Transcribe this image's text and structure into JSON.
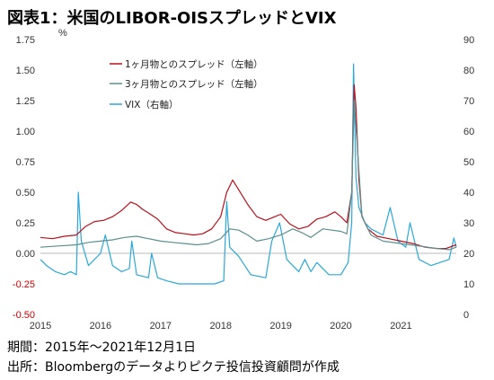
{
  "title": "図表1：米国のLIBOR-OISスプレッドとVIX",
  "footer": {
    "period": "期間：2015年～2021年12月1日",
    "source": "出所：Bloombergのデータよりピクテ投信投資顧問が作成"
  },
  "chart_data": {
    "type": "line",
    "ylabel_left": "%",
    "ylim_left": [
      -0.5,
      1.75
    ],
    "ylim_right": [
      0,
      90
    ],
    "left_ticks": [
      "1.75",
      "1.50",
      "1.25",
      "1.00",
      "0.75",
      "0.50",
      "0.25",
      "0.00",
      "-0.25",
      "-0.50"
    ],
    "right_ticks": [
      "90",
      "80",
      "70",
      "60",
      "50",
      "40",
      "30",
      "20",
      "10",
      "0"
    ],
    "x_ticks": [
      "2015",
      "2016",
      "2017",
      "2018",
      "2019",
      "2020",
      "2021"
    ],
    "xlim": [
      2015.0,
      2021.92
    ],
    "legend_position": "top-left",
    "colors": {
      "spread_1m": "#b5121b",
      "spread_3m": "#5b8f8f",
      "vix": "#2aa8d8",
      "negative_tick": "#cc0000"
    },
    "series": [
      {
        "name": "1ヶ月物とのスプレッド（左軸）",
        "axis": "left",
        "x": [
          2015.0,
          2015.2,
          2015.4,
          2015.6,
          2015.75,
          2015.9,
          2016.05,
          2016.2,
          2016.35,
          2016.5,
          2016.6,
          2016.7,
          2016.8,
          2016.95,
          2017.1,
          2017.25,
          2017.4,
          2017.55,
          2017.7,
          2017.85,
          2018.0,
          2018.1,
          2018.2,
          2018.3,
          2018.45,
          2018.6,
          2018.75,
          2018.9,
          2019.0,
          2019.15,
          2019.3,
          2019.45,
          2019.6,
          2019.75,
          2019.9,
          2020.0,
          2020.1,
          2020.18,
          2020.22,
          2020.25,
          2020.3,
          2020.35,
          2020.45,
          2020.6,
          2020.8,
          2021.0,
          2021.2,
          2021.4,
          2021.6,
          2021.75,
          2021.92
        ],
        "values": [
          0.13,
          0.12,
          0.14,
          0.15,
          0.22,
          0.26,
          0.27,
          0.3,
          0.35,
          0.42,
          0.4,
          0.36,
          0.33,
          0.28,
          0.2,
          0.17,
          0.16,
          0.15,
          0.16,
          0.2,
          0.3,
          0.5,
          0.6,
          0.52,
          0.4,
          0.3,
          0.27,
          0.3,
          0.32,
          0.24,
          0.2,
          0.22,
          0.28,
          0.3,
          0.34,
          0.3,
          0.25,
          0.5,
          1.38,
          1.2,
          0.6,
          0.3,
          0.2,
          0.14,
          0.12,
          0.1,
          0.08,
          0.05,
          0.04,
          0.04,
          0.07
        ]
      },
      {
        "name": "3ヶ月物とのスプレッド（左軸）",
        "axis": "left",
        "x": [
          2015.0,
          2015.3,
          2015.6,
          2015.8,
          2016.0,
          2016.2,
          2016.4,
          2016.6,
          2016.8,
          2017.0,
          2017.2,
          2017.4,
          2017.6,
          2017.8,
          2018.0,
          2018.15,
          2018.3,
          2018.45,
          2018.6,
          2018.8,
          2019.0,
          2019.2,
          2019.35,
          2019.5,
          2019.7,
          2019.85,
          2020.0,
          2020.1,
          2020.18,
          2020.22,
          2020.27,
          2020.35,
          2020.5,
          2020.7,
          2021.0,
          2021.3,
          2021.6,
          2021.8,
          2021.92
        ],
        "values": [
          0.05,
          0.06,
          0.07,
          0.09,
          0.1,
          0.11,
          0.13,
          0.14,
          0.12,
          0.1,
          0.09,
          0.08,
          0.07,
          0.08,
          0.12,
          0.2,
          0.19,
          0.15,
          0.1,
          0.12,
          0.15,
          0.2,
          0.17,
          0.13,
          0.2,
          0.19,
          0.18,
          0.16,
          0.5,
          1.25,
          0.9,
          0.3,
          0.15,
          0.1,
          0.08,
          0.06,
          0.04,
          0.03,
          0.05
        ]
      },
      {
        "name": "VIX（右軸）",
        "axis": "right",
        "x": [
          2015.0,
          2015.1,
          2015.25,
          2015.4,
          2015.5,
          2015.6,
          2015.63,
          2015.68,
          2015.8,
          2016.0,
          2016.08,
          2016.2,
          2016.35,
          2016.48,
          2016.52,
          2016.6,
          2016.8,
          2016.85,
          2016.95,
          2017.1,
          2017.3,
          2017.5,
          2017.7,
          2017.9,
          2018.05,
          2018.1,
          2018.15,
          2018.3,
          2018.5,
          2018.75,
          2018.85,
          2018.98,
          2019.1,
          2019.3,
          2019.4,
          2019.5,
          2019.6,
          2019.8,
          2020.0,
          2020.12,
          2020.18,
          2020.21,
          2020.25,
          2020.3,
          2020.4,
          2020.5,
          2020.7,
          2020.82,
          2020.95,
          2021.08,
          2021.15,
          2021.3,
          2021.5,
          2021.65,
          2021.8,
          2021.88,
          2021.92
        ],
        "values": [
          18,
          16,
          14,
          13,
          14,
          13,
          40,
          24,
          16,
          20,
          26,
          16,
          14,
          15,
          24,
          13,
          12,
          20,
          12,
          11,
          10,
          10,
          10,
          10,
          11,
          37,
          22,
          19,
          13,
          12,
          24,
          30,
          18,
          14,
          18,
          14,
          17,
          13,
          13,
          17,
          30,
          82,
          45,
          35,
          30,
          28,
          26,
          35,
          24,
          22,
          30,
          18,
          16,
          17,
          18,
          25,
          22
        ]
      }
    ]
  }
}
